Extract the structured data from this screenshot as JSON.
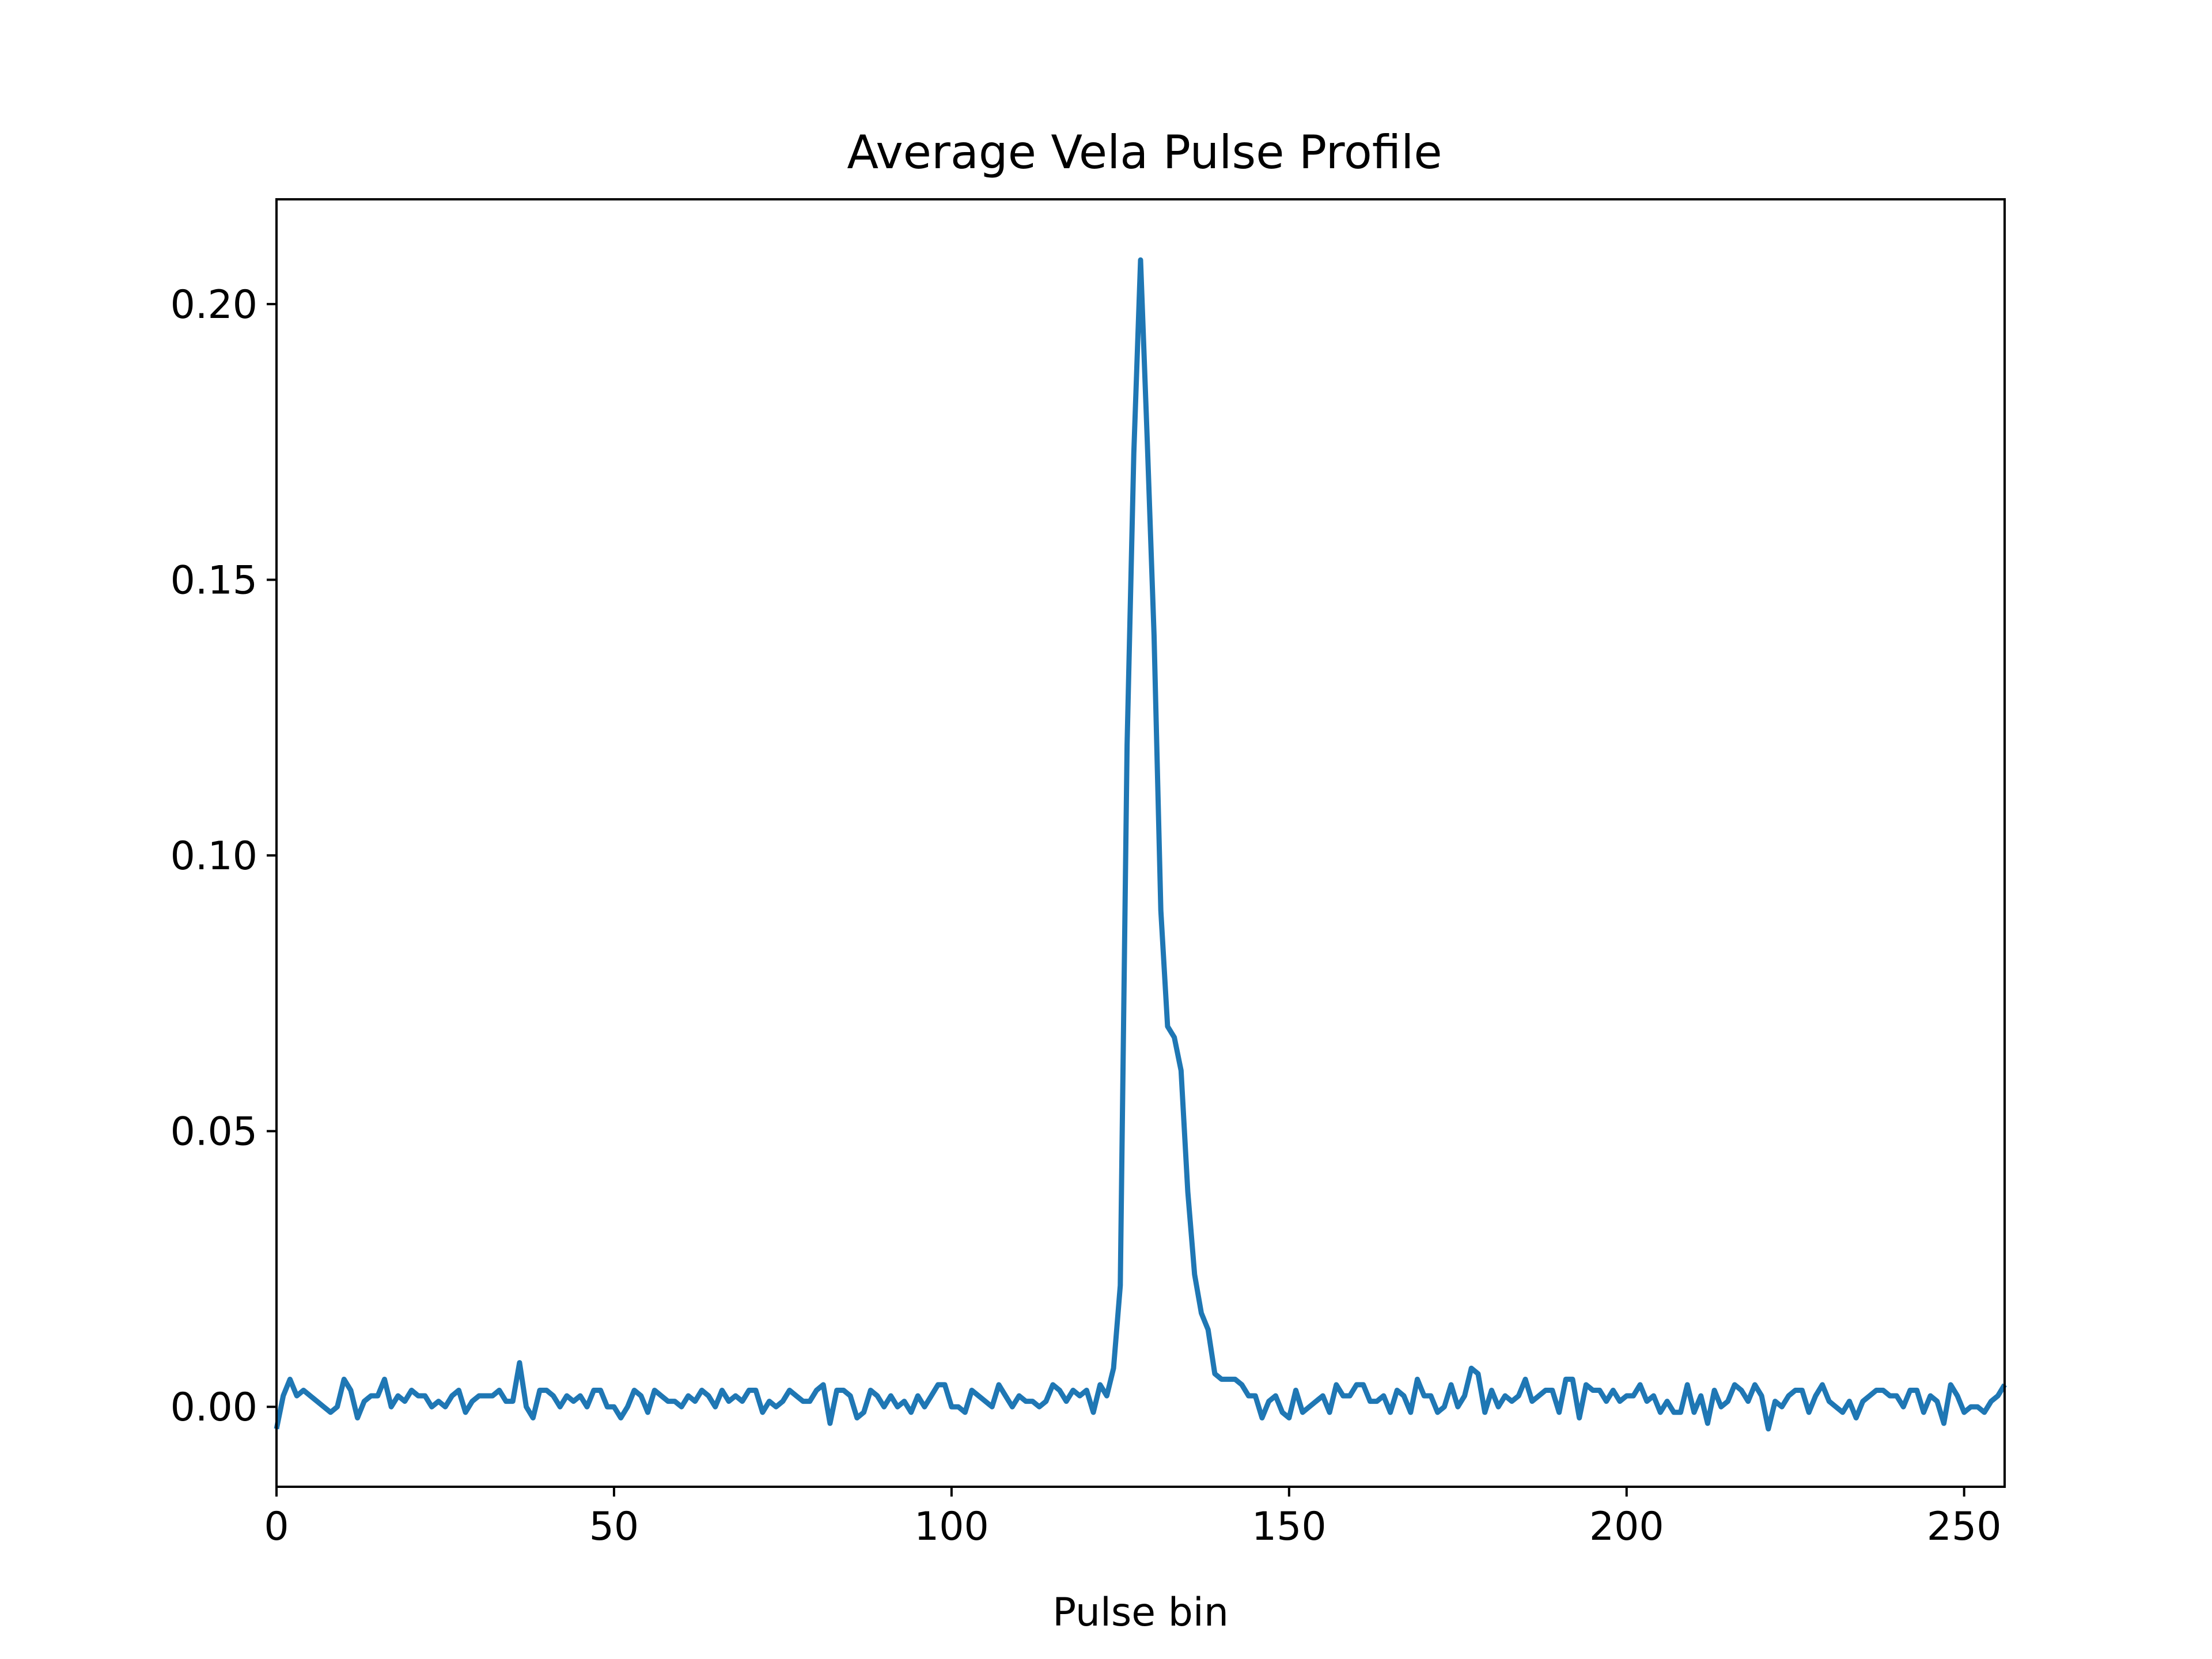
{
  "chart_data": {
    "type": "line",
    "title": "Average Vela Pulse Profile",
    "xlabel": "Pulse bin",
    "ylabel": "",
    "xlim": [
      0,
      256
    ],
    "ylim": [
      -0.0145,
      0.219
    ],
    "xticks": [
      0,
      50,
      100,
      150,
      200,
      250
    ],
    "yticks": [
      0.0,
      0.05,
      0.1,
      0.15,
      0.2
    ],
    "xtick_labels": [
      "0",
      "50",
      "100",
      "150",
      "200",
      "250"
    ],
    "ytick_labels": [
      "0.00",
      "0.05",
      "0.10",
      "0.15",
      "0.20"
    ],
    "grid": false,
    "legend": "none",
    "line_color": "#1f77b4",
    "series": [
      {
        "x_start": 0,
        "x_step": 1,
        "values": [
          -0.004,
          0.002,
          0.005,
          0.002,
          0.003,
          0.002,
          0.001,
          0.0,
          -0.001,
          0.0,
          0.005,
          0.003,
          -0.002,
          0.001,
          0.002,
          0.002,
          0.005,
          0.0,
          0.002,
          0.001,
          0.003,
          0.002,
          0.002,
          0.0,
          0.001,
          0.0,
          0.002,
          0.003,
          -0.001,
          0.001,
          0.002,
          0.002,
          0.002,
          0.003,
          0.001,
          0.001,
          0.008,
          0.0,
          -0.002,
          0.003,
          0.003,
          0.002,
          0.0,
          0.002,
          0.001,
          0.002,
          0.0,
          0.003,
          0.003,
          0.0,
          0.0,
          -0.002,
          0.0,
          0.003,
          0.002,
          -0.001,
          0.003,
          0.002,
          0.001,
          0.001,
          0.0,
          0.002,
          0.001,
          0.003,
          0.002,
          0.0,
          0.003,
          0.001,
          0.002,
          0.001,
          0.003,
          0.003,
          -0.001,
          0.001,
          0.0,
          0.001,
          0.003,
          0.002,
          0.001,
          0.001,
          0.003,
          0.004,
          -0.003,
          0.003,
          0.003,
          0.002,
          -0.002,
          -0.001,
          0.003,
          0.002,
          0.0,
          0.002,
          0.0,
          0.001,
          -0.001,
          0.002,
          0.0,
          0.002,
          0.004,
          0.004,
          0.0,
          0.0,
          -0.001,
          0.003,
          0.002,
          0.001,
          0.0,
          0.004,
          0.002,
          0.0,
          0.002,
          0.001,
          0.001,
          0.0,
          0.001,
          0.004,
          0.003,
          0.001,
          0.003,
          0.002,
          0.003,
          -0.001,
          0.004,
          0.002,
          0.007,
          0.022,
          0.12,
          0.173,
          0.208,
          0.175,
          0.14,
          0.09,
          0.069,
          0.067,
          0.061,
          0.039,
          0.024,
          0.017,
          0.014,
          0.006,
          0.005,
          0.005,
          0.005,
          0.004,
          0.002,
          0.002,
          -0.002,
          0.001,
          0.002,
          -0.001,
          -0.002,
          0.003,
          -0.001,
          0.0,
          0.001,
          0.002,
          -0.001,
          0.004,
          0.002,
          0.002,
          0.004,
          0.004,
          0.001,
          0.001,
          0.002,
          -0.001,
          0.003,
          0.002,
          -0.001,
          0.005,
          0.002,
          0.002,
          -0.001,
          0.0,
          0.004,
          0.0,
          0.002,
          0.007,
          0.006,
          -0.001,
          0.003,
          0.0,
          0.002,
          0.001,
          0.002,
          0.005,
          0.001,
          0.002,
          0.003,
          0.003,
          -0.001,
          0.005,
          0.005,
          -0.002,
          0.004,
          0.003,
          0.003,
          0.001,
          0.003,
          0.001,
          0.002,
          0.002,
          0.004,
          0.001,
          0.002,
          -0.001,
          0.001,
          -0.001,
          -0.001,
          0.004,
          -0.001,
          0.002,
          -0.003,
          0.003,
          0.0,
          0.001,
          0.004,
          0.003,
          0.001,
          0.004,
          0.002,
          -0.004,
          0.001,
          0.0,
          0.002,
          0.003,
          0.003,
          -0.001,
          0.002,
          0.004,
          0.001,
          0.0,
          -0.001,
          0.001,
          -0.002,
          0.001,
          0.002,
          0.003,
          0.003,
          0.002,
          0.002,
          0.0,
          0.003,
          0.003,
          -0.001,
          0.002,
          0.001,
          -0.003,
          0.004,
          0.002,
          -0.001,
          0.0,
          0.0,
          -0.001,
          0.001,
          0.002,
          0.004
        ]
      }
    ]
  }
}
